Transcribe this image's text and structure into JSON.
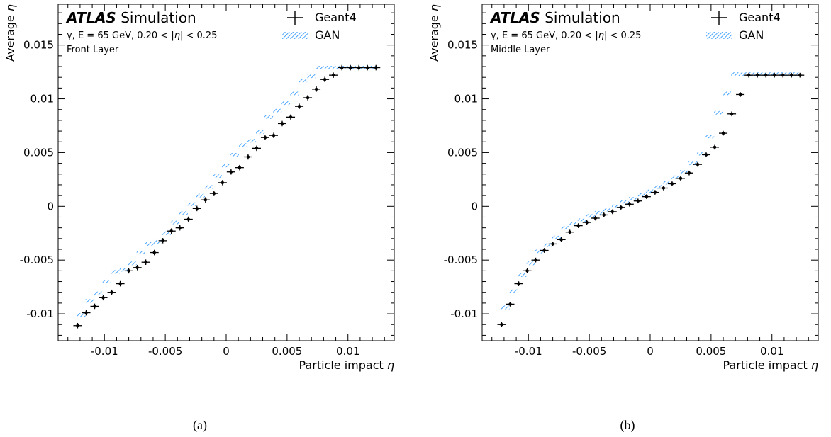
{
  "figure": {
    "caption_a": "(a)",
    "caption_b": "(b)"
  },
  "chart_data": [
    {
      "type": "scatter",
      "atlas_label": "ATLAS",
      "atlas_suffix": "Simulation",
      "line1": "γ, E = 65 GeV, 0.20 < |η| < 0.25",
      "line2": "Front Layer",
      "xlabel": "Particle impact η",
      "ylabel": "Average η",
      "xlim": [
        -0.0138,
        0.0138
      ],
      "ylim": [
        -0.0125,
        0.0188
      ],
      "xticks": [
        {
          "v": -0.01,
          "label": "-0.01"
        },
        {
          "v": -0.005,
          "label": "-0.005"
        },
        {
          "v": 0,
          "label": "0"
        },
        {
          "v": 0.005,
          "label": "0.005"
        },
        {
          "v": 0.01,
          "label": "0.01"
        }
      ],
      "yticks": [
        {
          "v": -0.01,
          "label": "-0.01"
        },
        {
          "v": -0.005,
          "label": "-0.005"
        },
        {
          "v": 0,
          "label": "0"
        },
        {
          "v": 0.005,
          "label": "0.005"
        },
        {
          "v": 0.01,
          "label": "0.01"
        },
        {
          "v": 0.015,
          "label": "0.015"
        }
      ],
      "legend": [
        "Geant4",
        "GAN"
      ],
      "legend_position": "top-right",
      "colors": {
        "geant4": "#000000",
        "gan": "#1e90ff"
      },
      "bin_half_width": 0.00035,
      "series": [
        {
          "name": "Geant4",
          "x": [
            -0.0122,
            -0.0115,
            -0.0108,
            -0.0101,
            -0.0094,
            -0.0087,
            -0.008,
            -0.0073,
            -0.0066,
            -0.0059,
            -0.0052,
            -0.0045,
            -0.0038,
            -0.0031,
            -0.0024,
            -0.0017,
            -0.001,
            -0.0003,
            0.0004,
            0.0011,
            0.0018,
            0.0025,
            0.0032,
            0.0039,
            0.0046,
            0.0053,
            0.006,
            0.0067,
            0.0074,
            0.0081,
            0.0088,
            0.0095,
            0.0102,
            0.0109,
            0.0116,
            0.0123
          ],
          "y": [
            -0.0111,
            -0.0099,
            -0.0093,
            -0.0085,
            -0.008,
            -0.0072,
            -0.006,
            -0.0057,
            -0.0052,
            -0.0043,
            -0.0032,
            -0.0023,
            -0.002,
            -0.0012,
            -0.0002,
            0.0006,
            0.0012,
            0.0022,
            0.0032,
            0.0036,
            0.0046,
            0.0054,
            0.0064,
            0.0066,
            0.0077,
            0.0083,
            0.0093,
            0.0101,
            0.0109,
            0.0118,
            0.0122,
            0.0129,
            0.0129,
            0.0129,
            0.0129,
            0.0129
          ],
          "yerr": 0.00025
        },
        {
          "name": "GAN",
          "x": [
            -0.0119,
            -0.0112,
            -0.0105,
            -0.0098,
            -0.0091,
            -0.0084,
            -0.0077,
            -0.007,
            -0.0063,
            -0.0056,
            -0.0049,
            -0.0042,
            -0.0035,
            -0.0028,
            -0.0021,
            -0.0014,
            -0.0007,
            0.0,
            0.0007,
            0.0014,
            0.0021,
            0.0028,
            0.0035,
            0.0042,
            0.0049,
            0.0056,
            0.0063,
            0.007,
            0.0077,
            0.0084,
            0.0091,
            0.0098,
            0.0105,
            0.0112,
            0.0119
          ],
          "y": [
            -0.0101,
            -0.0088,
            -0.0081,
            -0.007,
            -0.0061,
            -0.0059,
            -0.0053,
            -0.0043,
            -0.0035,
            -0.0033,
            -0.0025,
            -0.0015,
            -0.0006,
            0.0002,
            0.001,
            0.0018,
            0.0028,
            0.0038,
            0.0048,
            0.0057,
            0.0061,
            0.0069,
            0.0083,
            0.0089,
            0.0096,
            0.0105,
            0.0117,
            0.0121,
            0.0129,
            0.0129,
            0.0129,
            0.0129,
            0.0129,
            0.0129,
            0.0129
          ]
        }
      ]
    },
    {
      "type": "scatter",
      "atlas_label": "ATLAS",
      "atlas_suffix": "Simulation",
      "line1": "γ, E = 65 GeV, 0.20 < |η| < 0.25",
      "line2": "Middle Layer",
      "xlabel": "Particle impact η",
      "ylabel": "Average η",
      "xlim": [
        -0.0138,
        0.0138
      ],
      "ylim": [
        -0.0125,
        0.0188
      ],
      "xticks": [
        {
          "v": -0.01,
          "label": "-0.01"
        },
        {
          "v": -0.005,
          "label": "-0.005"
        },
        {
          "v": 0,
          "label": "0"
        },
        {
          "v": 0.005,
          "label": "0.005"
        },
        {
          "v": 0.01,
          "label": "0.01"
        }
      ],
      "yticks": [
        {
          "v": -0.01,
          "label": "-0.01"
        },
        {
          "v": -0.005,
          "label": "-0.005"
        },
        {
          "v": 0,
          "label": "0"
        },
        {
          "v": 0.005,
          "label": "0.005"
        },
        {
          "v": 0.01,
          "label": "0.01"
        },
        {
          "v": 0.015,
          "label": "0.015"
        }
      ],
      "legend": [
        "Geant4",
        "GAN"
      ],
      "legend_position": "top-right",
      "colors": {
        "geant4": "#000000",
        "gan": "#1e90ff"
      },
      "bin_half_width": 0.00035,
      "series": [
        {
          "name": "Geant4",
          "x": [
            -0.0122,
            -0.0115,
            -0.0108,
            -0.0101,
            -0.0094,
            -0.0087,
            -0.008,
            -0.0073,
            -0.0066,
            -0.0059,
            -0.0052,
            -0.0045,
            -0.0038,
            -0.0031,
            -0.0024,
            -0.0017,
            -0.001,
            -0.0003,
            0.0004,
            0.0011,
            0.0018,
            0.0025,
            0.0032,
            0.0039,
            0.0046,
            0.0053,
            0.006,
            0.0067,
            0.0074,
            0.0081,
            0.0088,
            0.0095,
            0.0102,
            0.0109,
            0.0116,
            0.0123
          ],
          "y": [
            -0.011,
            -0.0091,
            -0.0072,
            -0.006,
            -0.005,
            -0.0041,
            -0.0035,
            -0.0031,
            -0.0024,
            -0.0018,
            -0.0015,
            -0.0011,
            -0.0008,
            -0.0005,
            -0.0001,
            0.0002,
            0.0005,
            0.0009,
            0.0013,
            0.0017,
            0.0021,
            0.0026,
            0.0031,
            0.0039,
            0.0048,
            0.0055,
            0.0068,
            0.0086,
            0.0104,
            0.0122,
            0.0122,
            0.0122,
            0.0122,
            0.0122,
            0.0122,
            0.0122
          ],
          "yerr": 0.00022
        },
        {
          "name": "GAN",
          "x": [
            -0.0119,
            -0.0112,
            -0.0105,
            -0.0098,
            -0.0091,
            -0.0084,
            -0.0077,
            -0.007,
            -0.0063,
            -0.0056,
            -0.0049,
            -0.0042,
            -0.0035,
            -0.0028,
            -0.0021,
            -0.0014,
            -0.0007,
            0.0,
            0.0007,
            0.0014,
            0.0021,
            0.0028,
            0.0035,
            0.0042,
            0.0049,
            0.0056,
            0.0063,
            0.007,
            0.0077,
            0.0084,
            0.0091,
            0.0098,
            0.0105,
            0.0112,
            0.0119
          ],
          "y": [
            -0.0094,
            -0.0079,
            -0.0064,
            -0.0053,
            -0.0042,
            -0.0036,
            -0.0029,
            -0.002,
            -0.0016,
            -0.0013,
            -0.0009,
            -0.0006,
            -0.0003,
            0.0,
            0.0004,
            0.0007,
            0.0011,
            0.0014,
            0.0018,
            0.0022,
            0.0027,
            0.0032,
            0.004,
            0.0049,
            0.0065,
            0.0087,
            0.0105,
            0.0123,
            0.0123,
            0.0123,
            0.0123,
            0.0123,
            0.0123,
            0.0123,
            0.0123
          ]
        }
      ]
    }
  ]
}
